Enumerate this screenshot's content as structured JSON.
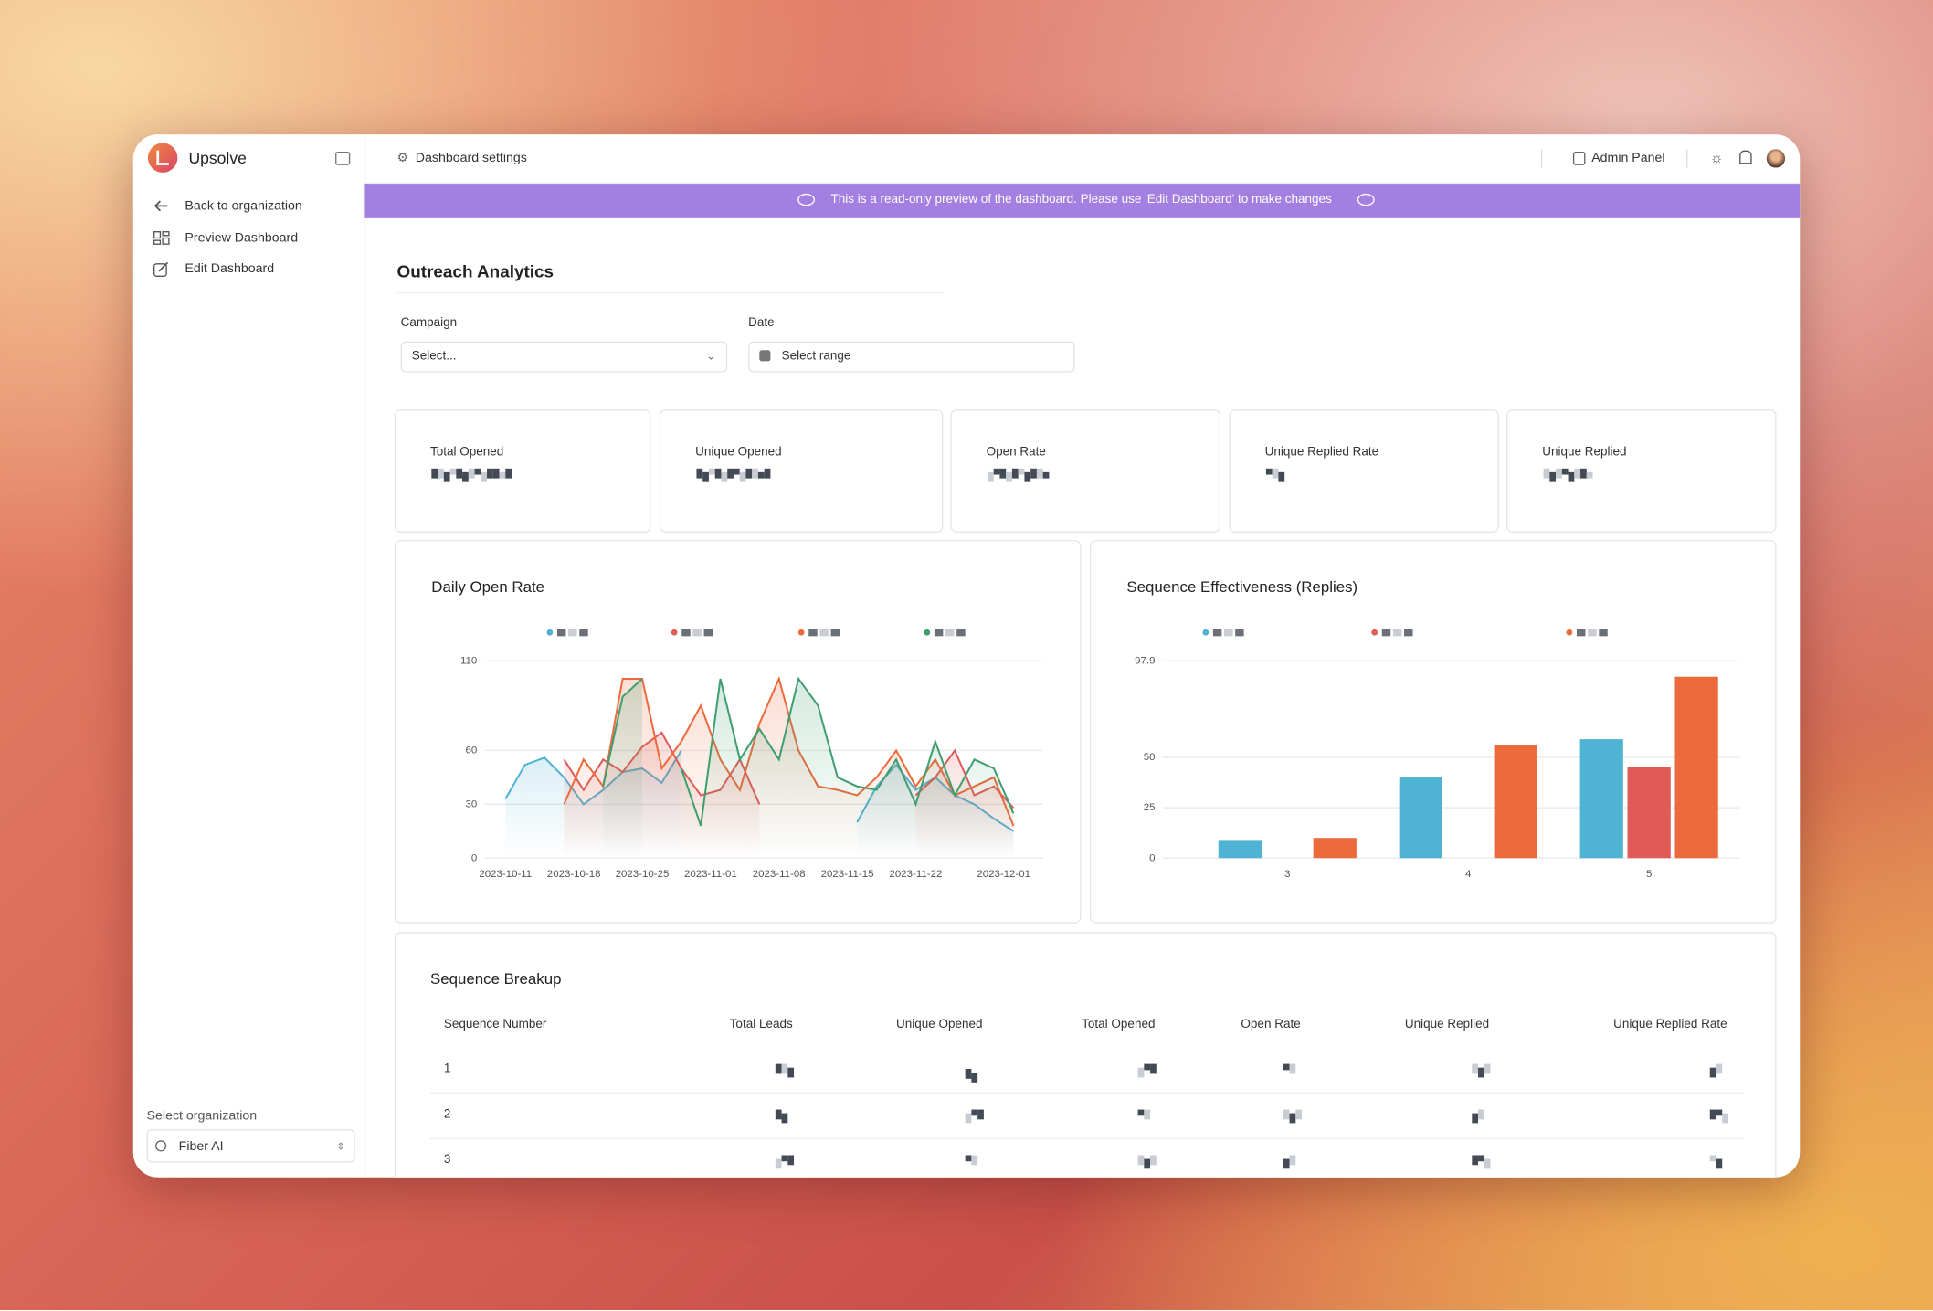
{
  "sidebar": {
    "brand": "Upsolve",
    "nav": [
      "Back to organization",
      "Preview Dashboard",
      "Edit Dashboard"
    ],
    "org_label": "Select organization",
    "org": "Fiber AI"
  },
  "topbar": {
    "settings": "Dashboard settings",
    "admin": "Admin Panel"
  },
  "banner": "This is a read-only preview of the dashboard. Please use 'Edit Dashboard' to make changes",
  "dashboard": {
    "title": "Outreach Analytics",
    "filters": [
      {
        "label": "Campaign",
        "placeholder": "Select..."
      },
      {
        "label": "Date",
        "placeholder": "Select range"
      }
    ],
    "kpis": [
      "Total Opened",
      "Unique Opened",
      "Open Rate",
      "Unique Replied Rate",
      "Unique Replied"
    ]
  },
  "chart_data": [
    {
      "type": "line",
      "title": "Daily Open Rate",
      "x": [
        "2023-10-11",
        "2023-10-13",
        "2023-10-15",
        "2023-10-17",
        "2023-10-19",
        "2023-10-21",
        "2023-10-23",
        "2023-10-25",
        "2023-10-27",
        "2023-10-29",
        "2023-10-31",
        "2023-11-02",
        "2023-11-04",
        "2023-11-06",
        "2023-11-08",
        "2023-11-10",
        "2023-11-12",
        "2023-11-14",
        "2023-11-16",
        "2023-11-18",
        "2023-11-20",
        "2023-11-22",
        "2023-11-24",
        "2023-11-26",
        "2023-11-28",
        "2023-11-30",
        "2023-12-02"
      ],
      "series": [
        {
          "color": "#4fb3d4",
          "values": [
            33,
            52,
            56,
            45,
            30,
            38,
            48,
            50,
            42,
            60,
            null,
            null,
            null,
            null,
            null,
            null,
            null,
            null,
            20,
            40,
            52,
            38,
            45,
            35,
            30,
            22,
            15
          ]
        },
        {
          "color": "#e05a56",
          "values": [
            null,
            null,
            null,
            55,
            38,
            55,
            48,
            62,
            70,
            50,
            35,
            38,
            55,
            30,
            null,
            null,
            null,
            null,
            null,
            null,
            null,
            35,
            45,
            60,
            35,
            40,
            28
          ]
        },
        {
          "color": "#ec6a3b",
          "values": [
            null,
            null,
            null,
            30,
            55,
            40,
            100,
            100,
            50,
            65,
            85,
            55,
            38,
            75,
            100,
            60,
            40,
            38,
            35,
            45,
            60,
            40,
            55,
            35,
            40,
            45,
            18
          ]
        },
        {
          "color": "#3f9e6f",
          "values": [
            null,
            null,
            null,
            null,
            null,
            40,
            90,
            100,
            null,
            50,
            18,
            100,
            55,
            72,
            55,
            100,
            85,
            45,
            40,
            38,
            55,
            30,
            65,
            35,
            55,
            50,
            25
          ]
        }
      ],
      "xlim": [
        "2023-10-11",
        "2023-12-03"
      ],
      "xticks": [
        "2023-10-11",
        "2023-10-18",
        "2023-10-25",
        "2023-11-01",
        "2023-11-08",
        "2023-11-15",
        "2023-11-22",
        "2023-12-01"
      ],
      "ylim": [
        0,
        110
      ],
      "yticks": [
        0,
        30,
        60,
        110
      ],
      "grid": true
    },
    {
      "type": "bar",
      "title": "Sequence Effectiveness (Replies)",
      "categories": [
        "3",
        "4",
        "5"
      ],
      "series": [
        {
          "color": "#4fb3d4",
          "values": [
            9,
            40,
            59
          ]
        },
        {
          "color": "#e05a56",
          "values": [
            null,
            null,
            45
          ]
        },
        {
          "color": "#ec6a3b",
          "values": [
            10,
            56,
            90
          ]
        }
      ],
      "ylim": [
        0,
        97.9
      ],
      "yticks": [
        0,
        25,
        50,
        97.9
      ],
      "grid": true
    }
  ],
  "table": {
    "title": "Sequence Breakup",
    "columns": [
      "Sequence Number",
      "Total Leads",
      "Unique Opened",
      "Total Opened",
      "Open Rate",
      "Unique Replied",
      "Unique Replied Rate"
    ],
    "rows": [
      [
        "1"
      ],
      [
        "2"
      ],
      [
        "3"
      ]
    ]
  }
}
